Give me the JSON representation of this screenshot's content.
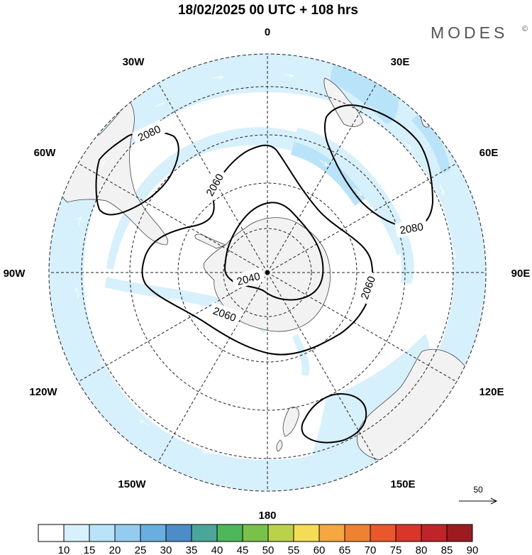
{
  "header": {
    "title": "18/02/2025  00 UTC  + 108 hrs",
    "brand": "MODES",
    "brand_mark": "©"
  },
  "map": {
    "projection": "polar-stereographic-south",
    "longitude_labels": [
      {
        "lon": 0,
        "text": "0"
      },
      {
        "lon": 30,
        "text": "30E"
      },
      {
        "lon": 60,
        "text": "60E"
      },
      {
        "lon": 90,
        "text": "90E"
      },
      {
        "lon": 120,
        "text": "120E"
      },
      {
        "lon": 150,
        "text": "150E"
      },
      {
        "lon": 180,
        "text": "180"
      },
      {
        "lon": -150,
        "text": "150W"
      },
      {
        "lon": -120,
        "text": "120W"
      },
      {
        "lon": -90,
        "text": "90W"
      },
      {
        "lon": -60,
        "text": "60W"
      },
      {
        "lon": -30,
        "text": "30W"
      }
    ],
    "contour_labels": [
      "2080",
      "2060",
      "2040",
      "2060",
      "2060",
      "2080"
    ],
    "wind_reference": {
      "value": "50"
    },
    "colors": {
      "ocean": "#ffffff",
      "land": "#f2f2f2",
      "coast": "#444444",
      "grid": "#222222",
      "contour": "#000000"
    }
  },
  "colorbar": {
    "labels": [
      "10",
      "15",
      "20",
      "25",
      "30",
      "35",
      "40",
      "45",
      "50",
      "55",
      "60",
      "65",
      "70",
      "75",
      "80",
      "85",
      "90"
    ],
    "colors": [
      "#ffffff",
      "#d7f1fc",
      "#b8e3f8",
      "#93ccef",
      "#6aaee0",
      "#4b8cc9",
      "#4aa69a",
      "#4cb85a",
      "#79c24a",
      "#b9d24a",
      "#f5dc55",
      "#f5a842",
      "#ef8232",
      "#e9582a",
      "#da3529",
      "#c02428",
      "#9c1b1f"
    ]
  }
}
